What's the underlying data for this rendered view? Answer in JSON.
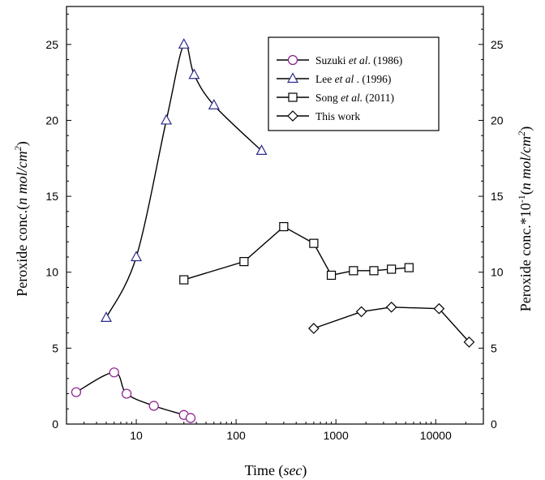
{
  "chart_data": {
    "type": "scatter",
    "x_scale": "log",
    "xlim": [
      2,
      30000
    ],
    "y_left_lim": [
      0,
      27.5
    ],
    "y_right_lim": [
      0,
      27.5
    ],
    "x_ticks": [
      10,
      100,
      1000,
      10000
    ],
    "x_tick_labels": [
      "10",
      "100",
      "1000",
      "10000"
    ],
    "y_ticks": [
      0,
      5,
      10,
      15,
      20,
      25
    ],
    "y_tick_labels": [
      "0",
      "5",
      "10",
      "15",
      "20",
      "25"
    ],
    "xlabel": {
      "pre": "Time (",
      "ital": "sec",
      "post": ")"
    },
    "ylabel_left": {
      "pre": "Peroxide conc.(",
      "ital": "n mol/cm",
      "sup": "2",
      "post": ")"
    },
    "ylabel_right": {
      "pre": "Peroxide conc.*10",
      "sup1": "-1",
      "mid": "(",
      "ital": "n mol/cm",
      "sup2": "2",
      "post": ")"
    },
    "grid": false,
    "legend_position": "top-right",
    "series": [
      {
        "name_parts": [
          "Suzuki ",
          "et al",
          ". (1986)"
        ],
        "marker": "circle",
        "color": "#8B1A8B",
        "axis": "left",
        "x": [
          2.5,
          6,
          8,
          15,
          30,
          35
        ],
        "y": [
          2.1,
          3.4,
          2.0,
          1.2,
          0.6,
          0.4
        ]
      },
      {
        "name_parts": [
          "Lee ",
          "et al",
          " . (1996)"
        ],
        "marker": "triangle",
        "color": "#2C2C8C",
        "axis": "left",
        "x": [
          5,
          10,
          20,
          30,
          38,
          60,
          180
        ],
        "y": [
          7.0,
          11.0,
          20.0,
          25.0,
          23.0,
          21.0,
          18.0
        ]
      },
      {
        "name_parts": [
          "Song ",
          "et al.",
          " (2011)"
        ],
        "marker": "square",
        "color": "#000000",
        "axis": "right",
        "x": [
          30,
          120,
          300,
          600,
          900,
          1500,
          2400,
          3600,
          5400
        ],
        "y": [
          9.5,
          10.7,
          13.0,
          11.9,
          9.8,
          10.1,
          10.1,
          10.2,
          10.3
        ]
      },
      {
        "name_parts": [
          "This work",
          "",
          ""
        ],
        "marker": "diamond",
        "color": "#000000",
        "axis": "right",
        "x": [
          600,
          1800,
          3600,
          10800,
          21600
        ],
        "y": [
          6.3,
          7.4,
          7.7,
          7.6,
          5.4
        ]
      }
    ]
  }
}
